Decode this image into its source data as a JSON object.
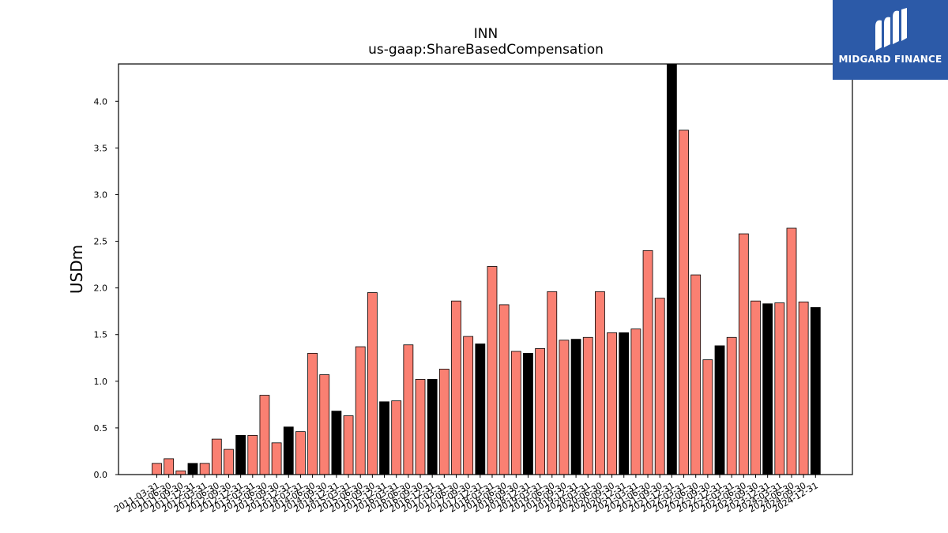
{
  "chart_data": {
    "type": "bar",
    "title": "INN",
    "subtitle": "us-gaap:ShareBasedCompensation",
    "ylabel": "USDm",
    "xlabel": "",
    "ylim": [
      0,
      4.4
    ],
    "yticks": [
      "0.0",
      "0.5",
      "1.0",
      "1.5",
      "2.0",
      "2.5",
      "3.0",
      "3.5",
      "4.0"
    ],
    "grid": false,
    "colors": {
      "default": "#fa8072",
      "highlight": "#000000",
      "edge": "#000000"
    },
    "categories": [
      "2011-03-31",
      "2011-06-30",
      "2011-09-30",
      "2011-12-31",
      "2012-03-31",
      "2012-06-30",
      "2012-09-30",
      "2012-12-31",
      "2013-03-31",
      "2013-06-30",
      "2013-09-30",
      "2013-12-31",
      "2014-03-31",
      "2014-06-30",
      "2014-09-30",
      "2014-12-31",
      "2015-03-31",
      "2015-06-30",
      "2015-09-30",
      "2015-12-31",
      "2016-03-31",
      "2016-06-30",
      "2016-09-30",
      "2016-12-31",
      "2017-03-31",
      "2017-06-30",
      "2017-09-30",
      "2017-12-31",
      "2018-03-31",
      "2018-06-30",
      "2018-09-30",
      "2018-12-31",
      "2019-03-31",
      "2019-06-30",
      "2019-09-30",
      "2019-12-31",
      "2020-03-31",
      "2020-06-30",
      "2020-09-30",
      "2020-12-31",
      "2021-03-31",
      "2021-06-30",
      "2021-09-30",
      "2021-12-31",
      "2022-03-31",
      "2022-06-30",
      "2022-09-30",
      "2022-12-31",
      "2023-03-31",
      "2023-06-30",
      "2023-09-30",
      "2023-12-31",
      "2024-03-31",
      "2024-06-30",
      "2024-09-30",
      "2024-12-31"
    ],
    "values": [
      0.12,
      0.17,
      0.04,
      0.12,
      0.12,
      0.38,
      0.27,
      0.42,
      0.42,
      0.85,
      0.34,
      0.51,
      0.46,
      1.3,
      1.07,
      0.68,
      0.63,
      1.37,
      1.95,
      0.78,
      0.79,
      1.39,
      1.02,
      1.02,
      1.13,
      1.86,
      1.48,
      1.4,
      2.23,
      1.82,
      1.32,
      1.3,
      1.35,
      1.96,
      1.44,
      1.45,
      1.47,
      1.96,
      1.52,
      1.52,
      1.56,
      2.4,
      1.89,
      4.45,
      3.69,
      2.14,
      1.23,
      1.38,
      1.47,
      2.58,
      1.86,
      1.83,
      1.84,
      2.64,
      1.85,
      1.79
    ],
    "highlight": [
      false,
      false,
      false,
      true,
      false,
      false,
      false,
      true,
      false,
      false,
      false,
      true,
      false,
      false,
      false,
      true,
      false,
      false,
      false,
      true,
      false,
      false,
      false,
      true,
      false,
      false,
      false,
      true,
      false,
      false,
      false,
      true,
      false,
      false,
      false,
      true,
      false,
      false,
      false,
      true,
      false,
      false,
      false,
      true,
      false,
      false,
      false,
      true,
      false,
      false,
      false,
      true,
      false,
      false,
      false,
      true
    ]
  },
  "logo": {
    "text": "MIDGARD FINANCE",
    "icon": "midgard-logo-icon"
  }
}
